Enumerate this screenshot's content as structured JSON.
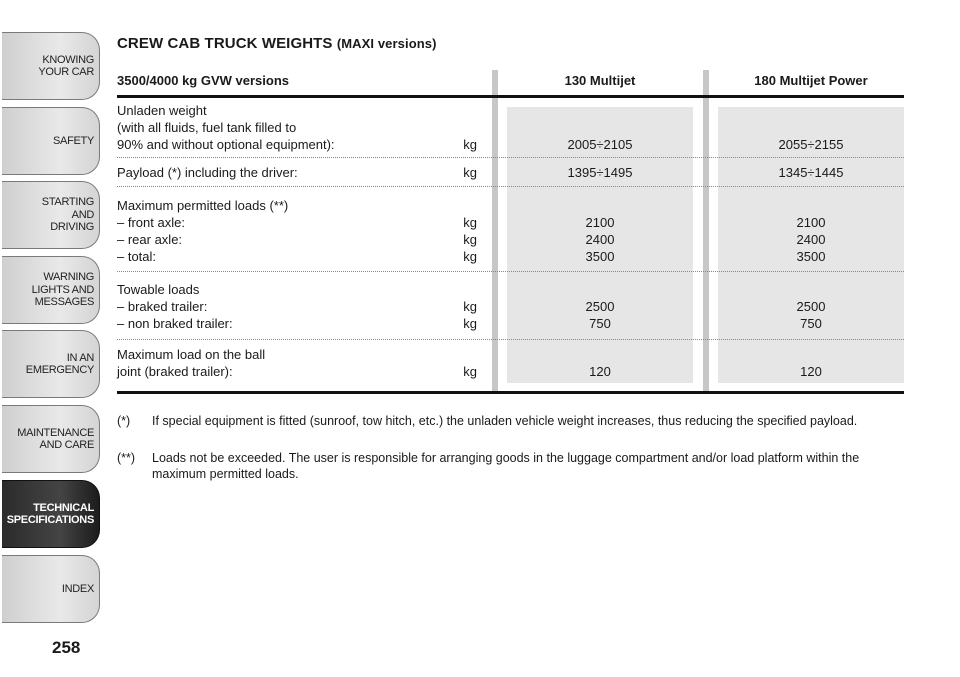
{
  "sidebar": {
    "tabs": [
      {
        "label": "KNOWING\nYOUR CAR",
        "active": false
      },
      {
        "label": "SAFETY",
        "active": false
      },
      {
        "label": "STARTING\nAND\nDRIVING",
        "active": false
      },
      {
        "label": "WARNING\nLIGHTS AND\nMESSAGES",
        "active": false
      },
      {
        "label": "IN AN\nEMERGENCY",
        "active": false
      },
      {
        "label": "MAINTENANCE\nAND CARE",
        "active": false
      },
      {
        "label": "TECHNICAL\nSPECIFICATIONS",
        "active": true
      },
      {
        "label": "INDEX",
        "active": false
      }
    ],
    "page_number": "258"
  },
  "title": {
    "main": "CREW CAB TRUCK WEIGHTS",
    "qualifier": "(MAXI versions)"
  },
  "table": {
    "header": {
      "row": "3500/4000 kg GVW versions",
      "col1": "130 Multijet",
      "col2": "180 Multijet Power"
    },
    "rows": [
      {
        "label": "Unladen weight\n(with all fluids, fuel tank filled to\n90% and without optional equipment):",
        "unit": "kg",
        "col1": "2005÷2105",
        "col2": "2055÷2155"
      },
      {
        "label": "Payload (*) including the driver:",
        "unit": "kg",
        "col1": "1395÷1495",
        "col2": "1345÷1445"
      },
      {
        "label": "Maximum permitted loads (**)\n– front axle:\n– rear axle:\n– total:",
        "unit": "\nkg\nkg\nkg",
        "col1": "2100\n2400\n3500",
        "col2": "2100\n2400\n3500"
      },
      {
        "label": "Towable loads\n– braked trailer:\n– non braked trailer:",
        "unit": "\nkg\nkg",
        "col1": "2500\n750",
        "col2": "2500\n750"
      },
      {
        "label": "Maximum load on the ball\njoint (braked trailer):",
        "unit": "kg",
        "col1": "120",
        "col2": "120"
      }
    ]
  },
  "notes": [
    {
      "mark": "(*)",
      "text": "If special equipment is fitted (sunroof, tow hitch, etc.) the unladen vehicle weight increases, thus reducing the specified payload."
    },
    {
      "mark": "(**)",
      "text": "Loads not be exceeded. The user is responsible for arranging goods in the luggage compartment and/or load platform within the maximum permitted loads."
    }
  ]
}
